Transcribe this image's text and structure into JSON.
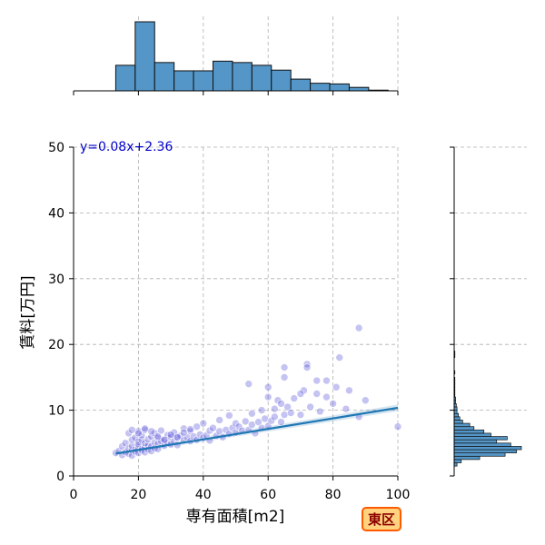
{
  "chart_data": {
    "type": "scatter",
    "xlabel": "専有面積[m2]",
    "ylabel": "賃料[万円]",
    "xlim": [
      0,
      100
    ],
    "ylim": [
      0,
      50
    ],
    "xticks": [
      0,
      20,
      40,
      60,
      80,
      100
    ],
    "yticks": [
      0,
      10,
      20,
      30,
      40,
      50
    ],
    "grid": true,
    "annotation": "y=0.08x+2.36",
    "badge": "東区",
    "regression": {
      "slope": 0.08,
      "intercept": 2.36,
      "x_range": [
        13,
        100
      ]
    },
    "points_x": [
      13,
      14,
      15,
      15,
      16,
      16,
      17,
      17,
      17,
      18,
      18,
      18,
      18,
      19,
      19,
      19,
      20,
      20,
      20,
      20,
      20,
      21,
      21,
      21,
      21,
      22,
      22,
      22,
      22,
      23,
      23,
      23,
      24,
      24,
      24,
      25,
      25,
      25,
      26,
      26,
      26,
      27,
      27,
      28,
      28,
      29,
      29,
      30,
      30,
      31,
      31,
      32,
      32,
      33,
      34,
      34,
      35,
      36,
      36,
      37,
      38,
      38,
      39,
      40,
      40,
      41,
      42,
      42,
      43,
      44,
      45,
      45,
      46,
      47,
      48,
      48,
      49,
      50,
      50,
      51,
      52,
      53,
      54,
      55,
      55,
      56,
      57,
      58,
      58,
      59,
      60,
      60,
      61,
      62,
      63,
      64,
      65,
      65,
      66,
      67,
      68,
      70,
      71,
      72,
      73,
      75,
      76,
      78,
      80,
      82,
      84,
      85,
      88,
      90,
      100,
      54,
      60,
      62,
      64,
      65,
      70,
      72,
      75,
      78,
      81,
      88,
      18,
      20,
      22,
      24,
      26,
      28,
      30,
      32,
      34,
      36
    ],
    "points_y": [
      3.5,
      3.8,
      3.2,
      4.5,
      3.6,
      5.0,
      3.4,
      4.2,
      6.5,
      3.9,
      4.6,
      5.5,
      3.1,
      4.0,
      5.8,
      3.7,
      4.3,
      5.2,
      6.8,
      3.5,
      4.8,
      4.1,
      5.5,
      3.9,
      6.2,
      4.4,
      5.0,
      3.6,
      7.0,
      4.7,
      5.6,
      4.0,
      4.5,
      6.0,
      3.8,
      5.1,
      4.2,
      6.5,
      4.9,
      5.8,
      4.1,
      5.3,
      6.9,
      4.6,
      5.5,
      5.0,
      6.2,
      4.8,
      5.9,
      5.2,
      6.6,
      4.7,
      5.8,
      6.1,
      5.4,
      7.2,
      5.9,
      5.3,
      6.8,
      6.0,
      5.5,
      7.5,
      6.3,
      5.8,
      8.0,
      6.2,
      6.9,
      5.4,
      7.3,
      6.1,
      6.8,
      8.5,
      5.9,
      7.0,
      6.4,
      9.2,
      7.3,
      6.6,
      8.0,
      7.5,
      6.9,
      8.3,
      7.0,
      7.8,
      9.5,
      6.5,
      8.2,
      7.3,
      10.0,
      8.7,
      7.6,
      12.0,
      8.4,
      9.0,
      11.5,
      8.2,
      9.3,
      16.5,
      10.5,
      9.6,
      11.8,
      9.3,
      13.0,
      17.0,
      10.5,
      12.5,
      9.8,
      14.5,
      11.0,
      18.0,
      10.2,
      13.0,
      22.5,
      11.5,
      7.5,
      14.0,
      13.5,
      10.2,
      11.0,
      15.0,
      12.5,
      16.5,
      14.5,
      12.0,
      13.5,
      9.0,
      7.0,
      6.5,
      7.2,
      6.8,
      6.0,
      5.5,
      6.3,
      5.9,
      6.6,
      7.1
    ],
    "hist_x": {
      "bin_width": 6,
      "bin_starts": [
        13,
        19,
        25,
        31,
        37,
        43,
        49,
        55,
        61,
        67,
        73,
        79,
        85,
        91
      ],
      "counts": [
        37,
        100,
        41,
        29,
        29,
        43,
        41,
        37,
        30,
        17,
        11,
        10,
        5,
        1
      ]
    },
    "hist_y": {
      "bin_width": 0.5,
      "bin_starts": [
        0.5,
        1,
        1.5,
        2,
        2.5,
        3,
        3.5,
        4,
        4.5,
        5,
        5.5,
        6,
        6.5,
        7,
        7.5,
        8,
        8.5,
        9,
        9.5,
        10,
        10.5,
        11,
        11.5,
        12,
        12.5,
        13,
        13.5,
        14,
        14.5,
        15,
        15.5,
        16,
        16.5,
        17,
        17.5,
        18,
        18.5
      ],
      "counts": [
        0,
        0,
        4,
        10,
        36,
        72,
        88,
        95,
        80,
        60,
        75,
        52,
        42,
        28,
        22,
        12,
        8,
        6,
        4,
        4,
        3,
        2,
        2,
        1,
        1,
        1,
        1,
        1,
        1,
        0,
        1,
        0,
        0,
        0,
        0,
        1,
        1
      ]
    }
  }
}
